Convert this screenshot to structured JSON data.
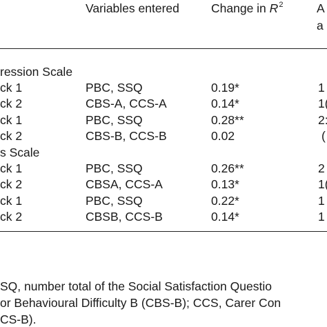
{
  "header": {
    "variables_entered": "Variables entered",
    "change_in": "Change in",
    "r_letter": "R",
    "r_sup": "2",
    "last_col_line1": "A",
    "last_col_line2": "a"
  },
  "sections": [
    {
      "title": "ression Scale",
      "rows": [
        {
          "label": "ck 1",
          "vars": "PBC, SSQ",
          "change": "0.19*",
          "last": "1"
        },
        {
          "label": "ck 2",
          "vars": "CBS-A, CCS-A",
          "change": "0.14*",
          "last": "1("
        },
        {
          "label": "ck 1",
          "vars": "PBC, SSQ",
          "change": "0.28**",
          "last": "2:"
        },
        {
          "label": "ck 2",
          "vars": "CBS-B, CCS-B",
          "change": "0.02",
          "last": "("
        }
      ]
    },
    {
      "title": "s Scale",
      "rows": [
        {
          "label": "ck 1",
          "vars": "PBC, SSQ",
          "change": "0.26**",
          "last": "2"
        },
        {
          "label": "ck 2",
          "vars": "CBSA, CCS-A",
          "change": "0.13*",
          "last": "1("
        },
        {
          "label": "ck 1",
          "vars": "PBC, SSQ",
          "change": "0.22*",
          "last": "1"
        },
        {
          "label": "ck 2",
          "vars": "CBSB, CCS-B",
          "change": "0.14*",
          "last": "1"
        }
      ]
    }
  ],
  "footnote": {
    "line1": "SQ, number total of the Social Satisfaction Questio",
    "line2": "or Behavioural Difficulty B (CBS-B); CCS, Carer Con",
    "line3": "CS-B)."
  }
}
